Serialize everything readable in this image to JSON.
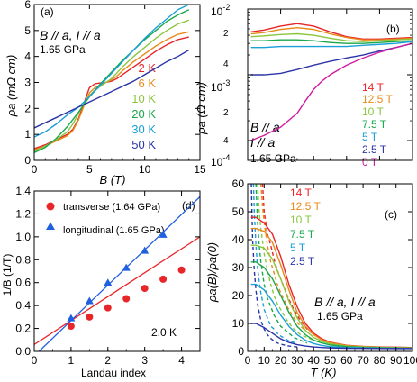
{
  "chart_data": [
    {
      "panel": "(a)",
      "type": "line",
      "xlabel": "B (T)",
      "ylabel": "ρa (mΩ cm)",
      "xlim": [
        0,
        15
      ],
      "ylim": [
        0,
        6
      ],
      "xticks": [
        0,
        5,
        10,
        15
      ],
      "yticks": [
        0,
        1,
        2,
        3,
        4,
        5,
        6
      ],
      "annotation_lines": [
        "B // a, I // a",
        "1.65 GPa"
      ],
      "series": [
        {
          "name": "2 K",
          "color": "#e8262a",
          "x": [
            0,
            1,
            2,
            2.5,
            3,
            3.5,
            4,
            4.5,
            5,
            5.5,
            6,
            6.5,
            7,
            7.5,
            8,
            9,
            10,
            11,
            12,
            13,
            14
          ],
          "y": [
            0.45,
            0.6,
            0.8,
            0.9,
            1.0,
            1.2,
            1.6,
            2.2,
            2.8,
            2.95,
            2.98,
            3.0,
            3.05,
            3.15,
            3.3,
            3.6,
            3.9,
            4.2,
            4.45,
            4.65,
            4.75
          ]
        },
        {
          "name": "6 K",
          "color": "#e88a1a",
          "x": [
            0,
            1,
            2,
            2.5,
            3,
            3.5,
            4,
            4.5,
            5,
            5.5,
            6,
            6.5,
            7,
            7.5,
            8,
            9,
            10,
            11,
            12,
            13,
            14
          ],
          "y": [
            0.4,
            0.55,
            0.75,
            0.85,
            0.95,
            1.15,
            1.55,
            2.1,
            2.6,
            2.8,
            2.9,
            3.0,
            3.1,
            3.25,
            3.45,
            3.8,
            4.1,
            4.4,
            4.65,
            4.85,
            4.95
          ]
        },
        {
          "name": "10 K",
          "color": "#8cc63f",
          "x": [
            0,
            1,
            2,
            3,
            3.5,
            4,
            4.5,
            5,
            5.5,
            6,
            7,
            8,
            9,
            10,
            11,
            12,
            13,
            14
          ],
          "y": [
            0.35,
            0.55,
            0.8,
            1.1,
            1.4,
            1.8,
            2.2,
            2.5,
            2.7,
            2.85,
            3.15,
            3.6,
            4.0,
            4.35,
            4.7,
            5.0,
            5.25,
            5.4
          ]
        },
        {
          "name": "20 K",
          "color": "#1aa84a",
          "x": [
            0,
            1,
            2,
            3,
            4,
            4.5,
            5,
            6,
            7,
            8,
            9,
            10,
            11,
            12,
            13,
            14
          ],
          "y": [
            0.3,
            0.5,
            0.85,
            1.3,
            1.85,
            2.15,
            2.45,
            2.95,
            3.4,
            3.85,
            4.25,
            4.65,
            5.0,
            5.35,
            5.6,
            5.8
          ]
        },
        {
          "name": "30 K",
          "color": "#1a9fd8",
          "x": [
            0,
            1,
            2,
            3,
            4,
            5,
            6,
            7,
            8,
            9,
            10,
            11,
            12,
            13,
            14
          ],
          "y": [
            0.9,
            1.1,
            1.4,
            1.75,
            2.05,
            2.45,
            2.9,
            3.35,
            3.8,
            4.25,
            4.7,
            5.1,
            5.45,
            5.8,
            6.0
          ]
        },
        {
          "name": "50 K",
          "color": "#2b35a8",
          "x": [
            0,
            1,
            2,
            3,
            4,
            5,
            6,
            7,
            8,
            9,
            10,
            11,
            12,
            13,
            14
          ],
          "y": [
            1.25,
            1.45,
            1.65,
            1.85,
            2.05,
            2.25,
            2.45,
            2.65,
            2.85,
            3.05,
            3.3,
            3.55,
            3.8,
            4.0,
            4.25
          ]
        }
      ]
    },
    {
      "panel": "(b)",
      "type": "line",
      "xlabel": "",
      "ylabel": "ρa (Ω cm)",
      "yscale": "log",
      "xlim": [
        0,
        100
      ],
      "ylim": [
        5e-05,
        0.01
      ],
      "ytick_labels": [
        "10^-4",
        "10^-3",
        "10^-2"
      ],
      "minor_labels": [
        "2",
        "4",
        "2",
        "4"
      ],
      "annotation_lines": [
        "B // a",
        "I // a",
        "1.65 GPa"
      ],
      "series": [
        {
          "name": "14 T",
          "color": "#e8262a",
          "x": [
            2,
            10,
            20,
            30,
            40,
            50,
            60,
            70,
            80,
            90,
            100
          ],
          "y": [
            0.0045,
            0.0048,
            0.0055,
            0.006,
            0.0055,
            0.0045,
            0.0038,
            0.0035,
            0.0035,
            0.0036,
            0.0037
          ]
        },
        {
          "name": "12.5 T",
          "color": "#e88a1a",
          "x": [
            2,
            10,
            20,
            30,
            40,
            50,
            60,
            70,
            80,
            90,
            100
          ],
          "y": [
            0.0042,
            0.0044,
            0.0049,
            0.0052,
            0.0049,
            0.0042,
            0.0037,
            0.0034,
            0.0034,
            0.0035,
            0.0036
          ]
        },
        {
          "name": "10 T",
          "color": "#8cc63f",
          "x": [
            2,
            10,
            20,
            30,
            40,
            50,
            60,
            70,
            80,
            90,
            100
          ],
          "y": [
            0.0038,
            0.0039,
            0.0041,
            0.0042,
            0.004,
            0.0036,
            0.0033,
            0.0032,
            0.0033,
            0.0034,
            0.0035
          ]
        },
        {
          "name": "7.5 T",
          "color": "#1aa84a",
          "x": [
            2,
            10,
            20,
            30,
            40,
            50,
            60,
            70,
            80,
            90,
            100
          ],
          "y": [
            0.0033,
            0.0033,
            0.0034,
            0.0034,
            0.0033,
            0.0031,
            0.003,
            0.003,
            0.0031,
            0.0032,
            0.0033
          ]
        },
        {
          "name": "5 T",
          "color": "#1a9fd8",
          "x": [
            2,
            10,
            20,
            30,
            40,
            50,
            60,
            70,
            80,
            90,
            100
          ],
          "y": [
            0.0026,
            0.0026,
            0.0027,
            0.0027,
            0.0027,
            0.0027,
            0.0027,
            0.0028,
            0.0029,
            0.003,
            0.0032
          ]
        },
        {
          "name": "2.5 T",
          "color": "#2b35a8",
          "x": [
            2,
            10,
            20,
            30,
            40,
            50,
            60,
            70,
            80,
            90,
            100
          ],
          "y": [
            0.001,
            0.001,
            0.00105,
            0.0012,
            0.0014,
            0.0016,
            0.0018,
            0.002,
            0.0023,
            0.0026,
            0.003
          ]
        },
        {
          "name": "0 T",
          "color": "#d01aa0",
          "x": [
            2,
            10,
            20,
            30,
            35,
            40,
            45,
            50,
            60,
            70,
            80,
            90,
            100
          ],
          "y": [
            0.0001,
            0.00012,
            0.00016,
            0.00026,
            0.0004,
            0.0006,
            0.0008,
            0.001,
            0.0014,
            0.0018,
            0.0022,
            0.0026,
            0.003
          ]
        }
      ]
    },
    {
      "panel": "(c)",
      "type": "line",
      "xlabel": "T (K)",
      "ylabel": "ρa(B)/ρa(0)",
      "xlim": [
        0,
        100
      ],
      "ylim": [
        0,
        60
      ],
      "xticks": [
        0,
        10,
        20,
        30,
        40,
        50,
        60,
        70,
        80,
        90,
        100
      ],
      "yticks": [
        0,
        10,
        20,
        30,
        40,
        50,
        60
      ],
      "annotation_lines": [
        "B // a, I // a",
        "1.65 GPa"
      ],
      "series": [
        {
          "name": "14 T",
          "color": "#e8262a",
          "x": [
            2,
            5,
            10,
            15,
            20,
            25,
            30,
            35,
            40,
            45,
            50,
            60,
            70,
            80,
            90,
            100
          ],
          "y": [
            48,
            48,
            46,
            42,
            34,
            24,
            16,
            10,
            6.5,
            4.5,
            3.3,
            2.2,
            1.8,
            1.6,
            1.5,
            1.4
          ]
        },
        {
          "name": "12.5 T",
          "color": "#e88a1a",
          "x": [
            2,
            5,
            10,
            15,
            20,
            25,
            30,
            35,
            40,
            45,
            50,
            60,
            70,
            80,
            90,
            100
          ],
          "y": [
            44,
            44,
            43,
            39,
            31,
            22,
            14,
            9,
            6,
            4.1,
            3.1,
            2.1,
            1.7,
            1.5,
            1.4,
            1.3
          ]
        },
        {
          "name": "10 T",
          "color": "#8cc63f",
          "x": [
            2,
            5,
            10,
            15,
            20,
            25,
            30,
            35,
            40,
            45,
            50,
            60,
            70,
            80,
            90,
            100
          ],
          "y": [
            38,
            38,
            37,
            33,
            26,
            18,
            12,
            7.5,
            5,
            3.6,
            2.7,
            1.9,
            1.6,
            1.4,
            1.3,
            1.2
          ]
        },
        {
          "name": "7.5 T",
          "color": "#1aa84a",
          "x": [
            2,
            5,
            10,
            15,
            20,
            25,
            30,
            35,
            40,
            45,
            50,
            60,
            70,
            80,
            90,
            100
          ],
          "y": [
            32,
            32,
            30,
            26,
            20,
            14,
            9,
            6,
            4,
            3,
            2.3,
            1.7,
            1.4,
            1.3,
            1.2,
            1.15
          ]
        },
        {
          "name": "5 T",
          "color": "#1a9fd8",
          "x": [
            2,
            5,
            10,
            15,
            20,
            25,
            30,
            35,
            40,
            45,
            50,
            60,
            70,
            80,
            90,
            100
          ],
          "y": [
            24,
            24,
            22,
            18,
            13,
            9,
            6,
            4,
            2.8,
            2.1,
            1.7,
            1.4,
            1.25,
            1.15,
            1.1,
            1.05
          ]
        },
        {
          "name": "2.5 T",
          "color": "#2b35a8",
          "x": [
            2,
            5,
            10,
            15,
            20,
            25,
            30,
            35,
            40,
            45,
            50,
            60,
            70,
            80,
            90,
            100
          ],
          "y": [
            10,
            10,
            8.5,
            6.5,
            4.5,
            3.2,
            2.4,
            1.9,
            1.6,
            1.4,
            1.25,
            1.12,
            1.06,
            1.03,
            1.01,
            1.0
          ]
        }
      ],
      "fits": [
        {
          "color": "#e8262a",
          "x": [
            9,
            10,
            12,
            14,
            16,
            18,
            20,
            24,
            28,
            32,
            36,
            40
          ],
          "y": [
            60,
            50,
            42,
            38,
            33,
            29,
            26,
            20,
            15,
            11,
            8,
            6
          ]
        },
        {
          "color": "#e88a1a",
          "x": [
            8,
            9,
            10,
            12,
            14,
            16,
            18,
            20,
            24,
            28,
            32,
            36,
            40
          ],
          "y": [
            60,
            52,
            46,
            38,
            32,
            28,
            24,
            21,
            16,
            12,
            9,
            7,
            5
          ]
        },
        {
          "color": "#8cc63f",
          "x": [
            6,
            7,
            8,
            10,
            12,
            14,
            16,
            18,
            20,
            24,
            28,
            32,
            36,
            40
          ],
          "y": [
            60,
            50,
            44,
            35,
            29,
            24,
            20,
            17,
            15,
            11,
            8,
            6,
            5,
            4
          ]
        },
        {
          "color": "#1aa84a",
          "x": [
            5,
            6,
            7,
            8,
            10,
            12,
            14,
            16,
            18,
            20,
            24,
            28,
            32,
            36
          ],
          "y": [
            60,
            46,
            38,
            32,
            24,
            19,
            16,
            13,
            11,
            9,
            7,
            5,
            4,
            3
          ]
        },
        {
          "color": "#1a9fd8",
          "x": [
            3.5,
            4,
            5,
            6,
            7,
            8,
            10,
            12,
            14,
            16,
            18,
            20,
            25,
            30
          ],
          "y": [
            60,
            50,
            38,
            30,
            25,
            21,
            15,
            12,
            9,
            8,
            6.5,
            5.5,
            3.8,
            2.8
          ]
        },
        {
          "color": "#2b35a8",
          "x": [
            2.2,
            3,
            4,
            5,
            6,
            8,
            10,
            12,
            14,
            16,
            18,
            20,
            25,
            30
          ],
          "y": [
            60,
            40,
            29,
            22,
            17,
            11,
            8,
            6,
            4.6,
            3.7,
            3,
            2.6,
            1.9,
            1.6
          ]
        }
      ]
    },
    {
      "panel": "(d)",
      "type": "scatter",
      "xlabel": "Landau index",
      "ylabel": "1/B (1/T)",
      "xlim": [
        0,
        4.5
      ],
      "ylim": [
        0,
        1.4
      ],
      "xticks": [
        0,
        1,
        2,
        3,
        4
      ],
      "yticks": [
        0,
        0.2,
        0.4,
        0.6,
        0.8,
        1.0,
        1.2,
        1.4
      ],
      "ytick_labels": [
        "0.0",
        "0.2",
        "0.4",
        "0.6",
        "0.8",
        "1.0",
        "1.2",
        "1.4"
      ],
      "annotation": "2.0 K",
      "series": [
        {
          "name": "transverse (1.64 GPa)",
          "marker": "circle",
          "color": "#e8262a",
          "x": [
            1,
            1.5,
            2,
            2.5,
            3,
            3.5,
            4
          ],
          "y": [
            0.22,
            0.3,
            0.38,
            0.46,
            0.55,
            0.63,
            0.71
          ]
        },
        {
          "name": "longitudinal (1.65 GPa)",
          "marker": "triangle",
          "color": "#1f5fe0",
          "x": [
            1,
            1.5,
            2,
            2.5,
            3,
            3.5
          ],
          "y": [
            0.29,
            0.44,
            0.6,
            0.73,
            0.88,
            1.02
          ]
        }
      ],
      "fit_lines": [
        {
          "color": "#e8262a",
          "x": [
            0,
            4.5
          ],
          "y": [
            0.06,
            1.0
          ]
        },
        {
          "color": "#1f5fe0",
          "x": [
            0,
            4.5
          ],
          "y": [
            -0.04,
            1.35
          ]
        }
      ]
    }
  ]
}
